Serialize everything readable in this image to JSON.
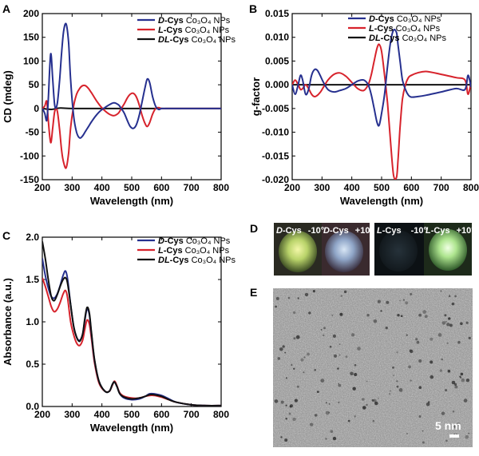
{
  "panels": {
    "a": "A",
    "b": "B",
    "c": "C",
    "d": "D",
    "e": "E"
  },
  "colors": {
    "d": "#26308f",
    "l": "#d7232c",
    "dl": "#111111"
  },
  "legend": [
    {
      "key": "d",
      "pre": "D",
      "mid": "-Cys ",
      "chem": "Co₃O₄ NPs"
    },
    {
      "key": "l",
      "pre": "L",
      "mid": "-Cys ",
      "chem": "Co₃O₄  NPs"
    },
    {
      "key": "dl",
      "pre": "DL",
      "mid": "-Cys ",
      "chem": "Co₃O₄ NPs"
    }
  ],
  "photos": {
    "labels": [
      {
        "pre": "D",
        "txt": "-Cys",
        "angle": "-10°"
      },
      {
        "pre": "D",
        "txt": "-Cys",
        "angle": "+10°"
      },
      {
        "pre": "L",
        "txt": "-Cys",
        "angle": "-10°"
      },
      {
        "pre": "L",
        "txt": "-Cys",
        "angle": "+10°"
      }
    ]
  },
  "tem": {
    "scalebar": "5 nm"
  },
  "chart_data": [
    {
      "id": "A",
      "type": "line",
      "xlabel": "Wavelength (nm)",
      "ylabel": "CD (mdeg)",
      "xlim": [
        200,
        800
      ],
      "ylim": [
        -150,
        200
      ],
      "xticks": [
        200,
        300,
        400,
        500,
        600,
        700,
        800
      ],
      "yticks": [
        -150,
        -100,
        -50,
        0,
        50,
        100,
        150,
        200
      ],
      "series": [
        {
          "name": "D-Cys Co3O4 NPs",
          "key": "d",
          "x": [
            200,
            208,
            215,
            220,
            228,
            235,
            242,
            250,
            258,
            265,
            272,
            280,
            288,
            295,
            305,
            315,
            325,
            335,
            345,
            355,
            365,
            380,
            395,
            410,
            425,
            440,
            455,
            465,
            475,
            485,
            495,
            505,
            515,
            525,
            535,
            545,
            552,
            560,
            570,
            580,
            590,
            600,
            615,
            630,
            650,
            700,
            750,
            800
          ],
          "y": [
            0,
            -10,
            -25,
            20,
            115,
            60,
            5,
            10,
            60,
            120,
            165,
            178,
            140,
            60,
            -15,
            -50,
            -62,
            -58,
            -48,
            -38,
            -28,
            -15,
            -5,
            2,
            8,
            12,
            8,
            0,
            -10,
            -25,
            -38,
            -42,
            -35,
            -15,
            15,
            45,
            62,
            55,
            25,
            5,
            -2,
            0,
            0,
            0,
            0,
            0,
            0,
            0
          ]
        },
        {
          "name": "L-Cys Co3O4 NPs",
          "key": "l",
          "x": [
            200,
            208,
            215,
            220,
            228,
            235,
            242,
            250,
            258,
            265,
            272,
            280,
            288,
            295,
            305,
            315,
            325,
            335,
            345,
            355,
            365,
            380,
            395,
            410,
            425,
            440,
            455,
            465,
            475,
            485,
            495,
            505,
            515,
            525,
            535,
            545,
            552,
            560,
            570,
            580,
            590,
            600,
            615,
            630,
            650,
            700,
            750,
            800
          ],
          "y": [
            0,
            5,
            15,
            -25,
            -72,
            -40,
            -5,
            -5,
            -45,
            -90,
            -115,
            -125,
            -95,
            -40,
            5,
            30,
            42,
            48,
            48,
            42,
            33,
            18,
            5,
            -5,
            -12,
            -15,
            -10,
            0,
            10,
            22,
            30,
            32,
            25,
            8,
            -15,
            -32,
            -38,
            -30,
            -12,
            0,
            2,
            0,
            0,
            0,
            0,
            0,
            0,
            0
          ]
        },
        {
          "name": "DL-Cys Co3O4 NPs",
          "key": "dl",
          "x": [
            200,
            230,
            260,
            300,
            400,
            500,
            600,
            700,
            800
          ],
          "y": [
            0,
            -2,
            1,
            0,
            0,
            0,
            0,
            0,
            0
          ]
        }
      ]
    },
    {
      "id": "B",
      "type": "line",
      "xlabel": "Wavelength (nm)",
      "ylabel": "g-factor",
      "xlim": [
        200,
        800
      ],
      "ylim": [
        -0.02,
        0.015
      ],
      "xticks": [
        200,
        300,
        400,
        500,
        600,
        700,
        800
      ],
      "yticks": [
        -0.02,
        -0.015,
        -0.01,
        -0.005,
        0.0,
        0.005,
        0.01,
        0.015
      ],
      "ytick_labels": [
        "-0.020",
        "-0.015",
        "-0.010",
        "-0.005",
        "0.000",
        "0.005",
        "0.010",
        "0.015"
      ],
      "series": [
        {
          "name": "D-Cys Co3O4 NPs",
          "key": "d",
          "x": [
            200,
            210,
            220,
            228,
            235,
            245,
            255,
            265,
            275,
            285,
            295,
            305,
            320,
            340,
            360,
            380,
            400,
            420,
            440,
            455,
            465,
            475,
            485,
            492,
            500,
            510,
            520,
            530,
            540,
            550,
            555,
            562,
            570,
            580,
            590,
            600,
            620,
            650,
            700,
            750,
            780,
            790,
            800
          ],
          "y": [
            0.0,
            -0.002,
            0.0,
            0.002,
            0.001,
            -0.002,
            -0.001,
            0.002,
            0.0032,
            0.003,
            0.0018,
            0.0005,
            -0.001,
            -0.0015,
            -0.0012,
            -0.0008,
            0.0,
            0.0008,
            0.001,
            0.0,
            -0.002,
            -0.005,
            -0.008,
            -0.0085,
            -0.006,
            -0.002,
            0.004,
            0.009,
            0.0115,
            0.011,
            0.0085,
            0.005,
            0.001,
            -0.001,
            -0.0022,
            -0.0026,
            -0.0025,
            -0.0022,
            -0.0015,
            -0.0008,
            -0.001,
            0.002,
            -0.0005
          ]
        },
        {
          "name": "L-Cys Co3O4 NPs",
          "key": "l",
          "x": [
            200,
            210,
            220,
            228,
            235,
            245,
            255,
            265,
            275,
            285,
            295,
            305,
            320,
            340,
            360,
            380,
            400,
            420,
            440,
            455,
            465,
            475,
            485,
            492,
            500,
            510,
            520,
            530,
            540,
            550,
            555,
            562,
            570,
            580,
            590,
            600,
            620,
            650,
            700,
            750,
            780,
            790,
            800
          ],
          "y": [
            0.0,
            0.001,
            0.0,
            -0.001,
            -0.0008,
            0.0,
            -0.0008,
            -0.002,
            -0.0025,
            -0.0022,
            -0.0015,
            -0.0005,
            0.001,
            0.0022,
            0.0025,
            0.0018,
            0.0005,
            -0.0008,
            -0.0012,
            0.0,
            0.002,
            0.005,
            0.0078,
            0.0085,
            0.007,
            0.002,
            -0.004,
            -0.012,
            -0.019,
            -0.0195,
            -0.016,
            -0.009,
            -0.003,
            0.0,
            0.0015,
            0.002,
            0.0025,
            0.0028,
            0.0022,
            0.0015,
            0.001,
            -0.002,
            0.0005
          ]
        },
        {
          "name": "DL-Cys Co3O4 NPs",
          "key": "dl",
          "x": [
            200,
            300,
            400,
            500,
            600,
            700,
            800
          ],
          "y": [
            0,
            0,
            0,
            0,
            0,
            0,
            0
          ]
        }
      ]
    },
    {
      "id": "C",
      "type": "line",
      "xlabel": "Wavelength (nm)",
      "ylabel": "Absorbance (a.u.)",
      "xlim": [
        200,
        800
      ],
      "ylim": [
        0.0,
        2.0
      ],
      "xticks": [
        200,
        300,
        400,
        500,
        600,
        700,
        800
      ],
      "yticks": [
        0.0,
        0.5,
        1.0,
        1.5,
        2.0
      ],
      "ytick_labels": [
        "0.0",
        "0.5",
        "1.0",
        "1.5",
        "2.0"
      ],
      "series": [
        {
          "name": "D-Cys Co3O4 NPs",
          "key": "d",
          "x": [
            200,
            210,
            220,
            230,
            240,
            250,
            260,
            270,
            278,
            285,
            295,
            305,
            315,
            325,
            335,
            342,
            350,
            358,
            365,
            375,
            390,
            410,
            425,
            435,
            442,
            450,
            460,
            475,
            500,
            525,
            545,
            560,
            575,
            600,
            625,
            650,
            700,
            750,
            800
          ],
          "y": [
            1.75,
            1.55,
            1.4,
            1.3,
            1.28,
            1.33,
            1.43,
            1.55,
            1.6,
            1.5,
            1.2,
            0.95,
            0.82,
            0.78,
            0.85,
            1.0,
            1.15,
            1.08,
            0.85,
            0.55,
            0.3,
            0.18,
            0.18,
            0.26,
            0.29,
            0.24,
            0.15,
            0.1,
            0.08,
            0.09,
            0.12,
            0.15,
            0.15,
            0.13,
            0.09,
            0.05,
            0.02,
            0.01,
            0.01
          ]
        },
        {
          "name": "L-Cys Co3O4 NPs",
          "key": "l",
          "x": [
            200,
            210,
            220,
            230,
            240,
            250,
            260,
            270,
            278,
            285,
            295,
            305,
            315,
            325,
            335,
            342,
            350,
            358,
            365,
            375,
            390,
            410,
            425,
            435,
            442,
            450,
            460,
            475,
            500,
            525,
            545,
            560,
            575,
            600,
            625,
            650,
            700,
            750,
            800
          ],
          "y": [
            1.52,
            1.42,
            1.3,
            1.18,
            1.12,
            1.15,
            1.23,
            1.33,
            1.37,
            1.28,
            1.0,
            0.85,
            0.75,
            0.72,
            0.78,
            0.9,
            1.02,
            0.97,
            0.8,
            0.52,
            0.28,
            0.18,
            0.18,
            0.25,
            0.3,
            0.25,
            0.16,
            0.12,
            0.1,
            0.1,
            0.12,
            0.13,
            0.13,
            0.11,
            0.08,
            0.05,
            0.02,
            0.01,
            0.01
          ]
        },
        {
          "name": "DL-Cys Co3O4 NPs",
          "key": "dl",
          "x": [
            200,
            210,
            220,
            230,
            240,
            250,
            260,
            270,
            278,
            285,
            295,
            305,
            315,
            325,
            335,
            342,
            350,
            358,
            365,
            375,
            390,
            410,
            425,
            435,
            442,
            450,
            460,
            475,
            500,
            525,
            545,
            560,
            575,
            600,
            625,
            650,
            700,
            750,
            800
          ],
          "y": [
            1.95,
            1.75,
            1.5,
            1.3,
            1.25,
            1.32,
            1.42,
            1.5,
            1.52,
            1.45,
            1.2,
            0.95,
            0.82,
            0.77,
            0.85,
            1.02,
            1.17,
            1.1,
            0.87,
            0.56,
            0.3,
            0.18,
            0.18,
            0.26,
            0.29,
            0.24,
            0.15,
            0.11,
            0.09,
            0.1,
            0.12,
            0.14,
            0.14,
            0.12,
            0.08,
            0.05,
            0.02,
            0.01,
            0.01
          ]
        }
      ]
    }
  ]
}
